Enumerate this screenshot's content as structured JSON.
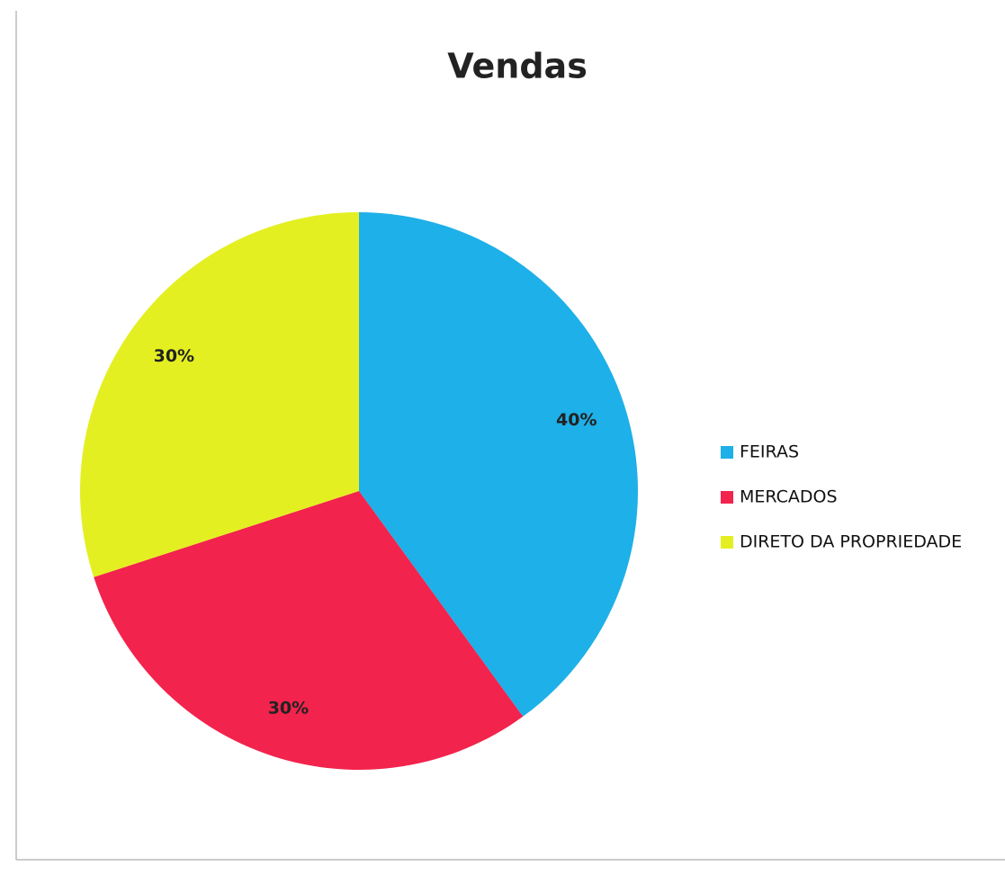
{
  "chart_data": {
    "type": "pie",
    "title": "Vendas",
    "categories": [
      "FEIRAS",
      "MERCADOS",
      "DIRETO DA PROPRIEDADE"
    ],
    "values": [
      40,
      30,
      30
    ],
    "value_labels": [
      "40%",
      "30%",
      "30%"
    ],
    "colors": [
      "#1eb0e8",
      "#f2234c",
      "#e4ef22"
    ],
    "legend": "right"
  }
}
